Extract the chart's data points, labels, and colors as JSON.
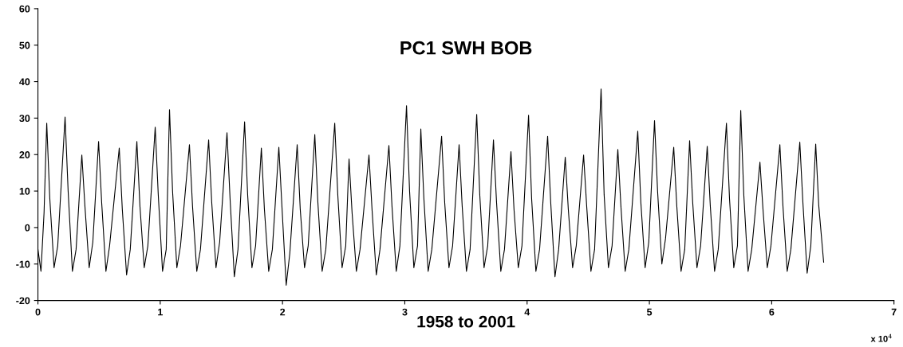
{
  "chart_data": {
    "type": "line",
    "title": "PC1 SWH BOB",
    "xlabel": "1958 to 2001",
    "annotations": [
      "x 10$^{4}$"
    ],
    "xlim": [
      0,
      7
    ],
    "ylim": [
      -20,
      60
    ],
    "xticks": [
      0,
      1,
      2,
      3,
      4,
      5,
      6,
      7
    ],
    "yticks": [
      -20,
      -10,
      0,
      10,
      20,
      30,
      40,
      50,
      60
    ],
    "grid": false,
    "legend": false,
    "marker": "none",
    "line_style": "solid",
    "series": [
      {
        "color": "#000000",
        "x": [
          0,
          0.025,
          0.05,
          0.072,
          0.097,
          0.132,
          0.162,
          0.222,
          0.247,
          0.282,
          0.312,
          0.359,
          0.384,
          0.419,
          0.449,
          0.496,
          0.521,
          0.556,
          0.586,
          0.665,
          0.69,
          0.725,
          0.755,
          0.809,
          0.834,
          0.869,
          0.899,
          0.959,
          0.984,
          1.019,
          1.049,
          1.076,
          1.101,
          1.136,
          1.166,
          1.239,
          1.264,
          1.299,
          1.329,
          1.396,
          1.421,
          1.456,
          1.486,
          1.546,
          1.571,
          1.606,
          1.636,
          1.69,
          1.715,
          1.75,
          1.78,
          1.827,
          1.852,
          1.887,
          1.917,
          1.97,
          1.995,
          2.03,
          2.06,
          2.12,
          2.145,
          2.18,
          2.21,
          2.264,
          2.289,
          2.324,
          2.354,
          2.427,
          2.452,
          2.487,
          2.517,
          2.544,
          2.569,
          2.604,
          2.634,
          2.707,
          2.732,
          2.767,
          2.797,
          2.87,
          2.895,
          2.93,
          2.96,
          3.014,
          3.039,
          3.074,
          3.104,
          3.131,
          3.156,
          3.191,
          3.221,
          3.301,
          3.326,
          3.361,
          3.391,
          3.444,
          3.469,
          3.504,
          3.534,
          3.588,
          3.613,
          3.648,
          3.678,
          3.725,
          3.75,
          3.785,
          3.815,
          3.868,
          3.893,
          3.928,
          3.958,
          4.012,
          4.037,
          4.072,
          4.102,
          4.168,
          4.193,
          4.228,
          4.258,
          4.312,
          4.337,
          4.372,
          4.402,
          4.462,
          4.487,
          4.522,
          4.552,
          4.605,
          4.63,
          4.665,
          4.695,
          4.742,
          4.767,
          4.802,
          4.832,
          4.905,
          4.93,
          4.965,
          4.995,
          5.042,
          5.067,
          5.102,
          5.132,
          5.199,
          5.224,
          5.259,
          5.289,
          5.329,
          5.354,
          5.389,
          5.419,
          5.473,
          5.498,
          5.533,
          5.563,
          5.63,
          5.655,
          5.69,
          5.72,
          5.747,
          5.772,
          5.807,
          5.837,
          5.904,
          5.929,
          5.964,
          5.994,
          6.067,
          6.092,
          6.127,
          6.157,
          6.23,
          6.255,
          6.29,
          6.32,
          6.36,
          6.385,
          6.425
        ],
        "values": [
          -6,
          -12,
          4,
          28.6,
          8,
          -11,
          -5,
          30.3,
          10,
          -12,
          -6,
          19.9,
          6,
          -11,
          -4,
          23.6,
          7,
          -12,
          -5,
          21.8,
          5,
          -13,
          -6,
          23.6,
          6,
          -11,
          -5,
          27.5,
          9,
          -12,
          -6,
          32.3,
          10,
          -11,
          -5,
          22.7,
          6,
          -12,
          -6,
          24,
          7,
          -11,
          -4,
          26,
          8,
          -13.5,
          -6,
          29,
          9,
          -11,
          -5,
          21.8,
          5,
          -12,
          -6,
          22,
          6,
          -15.8,
          -7,
          22.7,
          5,
          -11,
          -5,
          25.5,
          7,
          -12,
          -6,
          28.6,
          9,
          -11,
          -5,
          18.8,
          4,
          -12,
          -6,
          19.9,
          5,
          -13,
          -6,
          22.5,
          6,
          -12,
          -5,
          33.4,
          10,
          -11,
          -5,
          27,
          8,
          -12,
          -6,
          25,
          7,
          -11,
          -5,
          22.7,
          6,
          -12,
          -6,
          31,
          9,
          -11,
          -5,
          24,
          7,
          -12,
          -6,
          20.8,
          5,
          -11,
          -5,
          30.8,
          8,
          -12,
          -6,
          25,
          7,
          -13.5,
          -6,
          19.3,
          5,
          -11,
          -5,
          19.9,
          6,
          -12,
          -6,
          38,
          9,
          -11,
          -5,
          21.4,
          6,
          -12,
          -6,
          26.4,
          7,
          -11,
          -4,
          29.3,
          10,
          -10,
          -3,
          22,
          6,
          -12,
          -6,
          23.8,
          7,
          -11,
          -5,
          22.3,
          6,
          -12,
          -6,
          28.6,
          8,
          -11,
          -5,
          32.1,
          9,
          -12,
          -6,
          17.9,
          5,
          -11,
          -5,
          22.7,
          6,
          -12,
          -6,
          23.4,
          7,
          -12.5,
          -5,
          22.9,
          6,
          -9.5
        ]
      }
    ]
  }
}
